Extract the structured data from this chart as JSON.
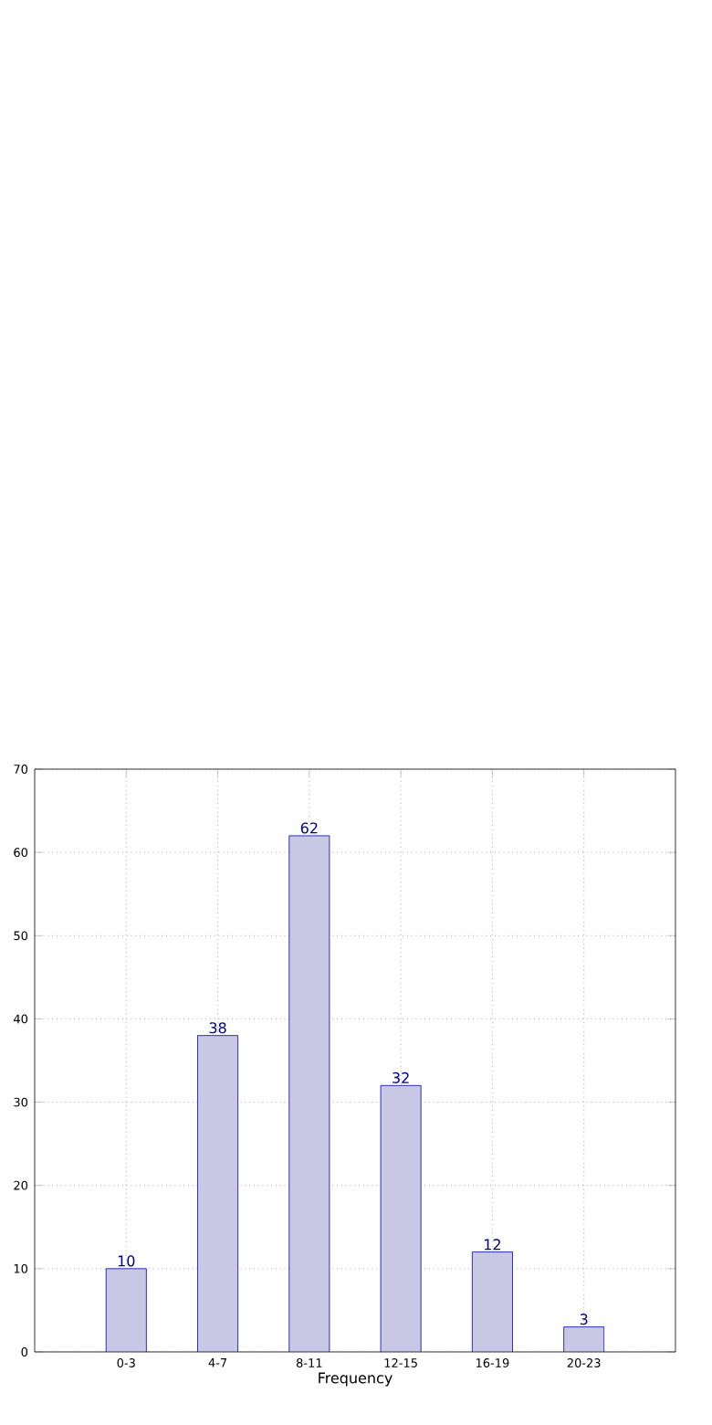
{
  "chart_data": {
    "type": "bar",
    "xlabel": "Frequency",
    "categories": [
      "0-3",
      "4-7",
      "8-11",
      "12-15",
      "16-19",
      "20-23"
    ],
    "values": [
      10,
      38,
      62,
      32,
      12,
      3
    ],
    "color": "#c8c8e4",
    "ylim": [
      0,
      70
    ],
    "yticks": [
      0,
      10,
      20,
      30,
      40,
      50,
      60,
      70
    ],
    "grid": true,
    "data_labels": true
  }
}
